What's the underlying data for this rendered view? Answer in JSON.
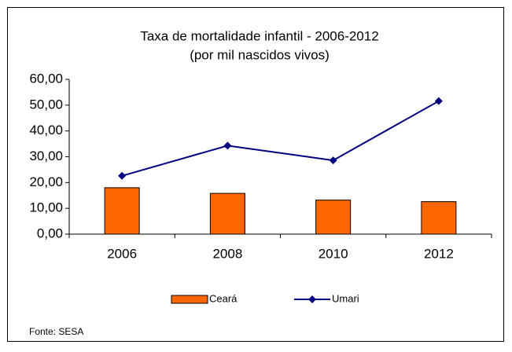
{
  "chart_data": {
    "type": "bar",
    "title": "Taxa de mortalidade infantil - 2006-2012",
    "subtitle": "(por mil nascidos vivos)",
    "categories": [
      "2006",
      "2008",
      "2010",
      "2012"
    ],
    "series": [
      {
        "name": "Ceará",
        "type": "bar",
        "color": "#ff6600",
        "values": [
          18.0,
          15.8,
          13.2,
          12.6
        ]
      },
      {
        "name": "Umari",
        "type": "line",
        "color": "#000080",
        "values": [
          22.6,
          34.3,
          28.6,
          51.6
        ]
      }
    ],
    "ylim": [
      0,
      60
    ],
    "yticks": [
      {
        "value": 0,
        "label": "0,00"
      },
      {
        "value": 10,
        "label": "10,00"
      },
      {
        "value": 20,
        "label": "20,00"
      },
      {
        "value": 30,
        "label": "30,00"
      },
      {
        "value": 40,
        "label": "40,00"
      },
      {
        "value": 50,
        "label": "50,00"
      },
      {
        "value": 60,
        "label": "60,00"
      }
    ],
    "legend": "bottom",
    "note": "Fonte: SESA"
  }
}
